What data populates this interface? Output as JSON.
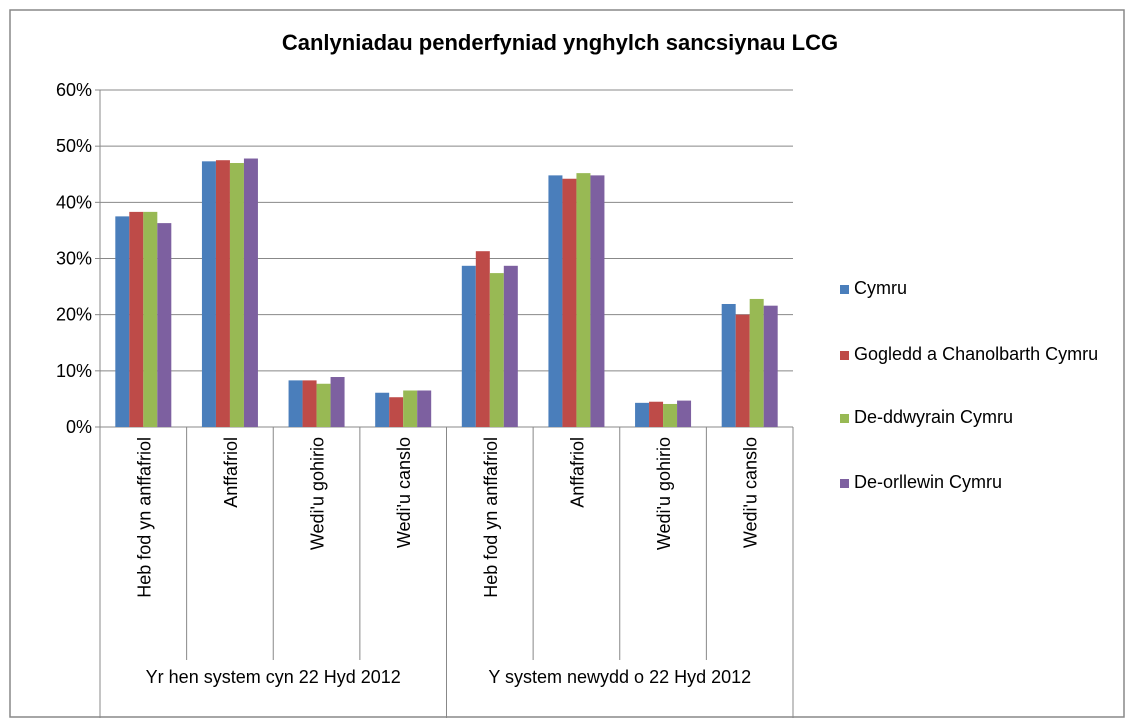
{
  "chart_data": {
    "type": "bar",
    "title": "Canlyniadau penderfyniad ynghylch sancsiynau LCG",
    "categories": [
      "Heb fod yn anffafriol",
      "Anffafriol",
      "Wedi'u gohirio",
      "Wedi'u canslo",
      "Heb fod yn anffafriol",
      "Anffafriol",
      "Wedi'u gohirio",
      "Wedi'u canslo"
    ],
    "groups": [
      {
        "label": "Yr hen system cyn 22 Hyd 2012",
        "size": 4
      },
      {
        "label": "Y system newydd o 22 Hyd 2012",
        "size": 4
      }
    ],
    "series": [
      {
        "name": "Cymru",
        "color": "#4a7ebb",
        "values": [
          37.5,
          47.3,
          8.3,
          6.1,
          28.7,
          44.8,
          4.3,
          21.9
        ]
      },
      {
        "name": "Gogledd a Chanolbarth Cymru",
        "color": "#be4b48",
        "values": [
          38.3,
          47.5,
          8.3,
          5.3,
          31.3,
          44.2,
          4.5,
          20.0
        ]
      },
      {
        "name": "De-ddwyrain Cymru",
        "color": "#98b954",
        "values": [
          38.3,
          47.0,
          7.7,
          6.5,
          27.4,
          45.2,
          4.1,
          22.8
        ]
      },
      {
        "name": "De-orllewin Cymru",
        "color": "#7d60a0",
        "values": [
          36.3,
          47.8,
          8.9,
          6.5,
          28.7,
          44.8,
          4.7,
          21.6
        ]
      }
    ],
    "ylim": [
      0,
      60
    ],
    "yticks": [
      {
        "value": 0,
        "label": "0%"
      },
      {
        "value": 10,
        "label": "10%"
      },
      {
        "value": 20,
        "label": "20%"
      },
      {
        "value": 30,
        "label": "30%"
      },
      {
        "value": 40,
        "label": "40%"
      },
      {
        "value": 50,
        "label": "50%"
      },
      {
        "value": 60,
        "label": "60%"
      }
    ],
    "grid": true,
    "legend": "right"
  }
}
